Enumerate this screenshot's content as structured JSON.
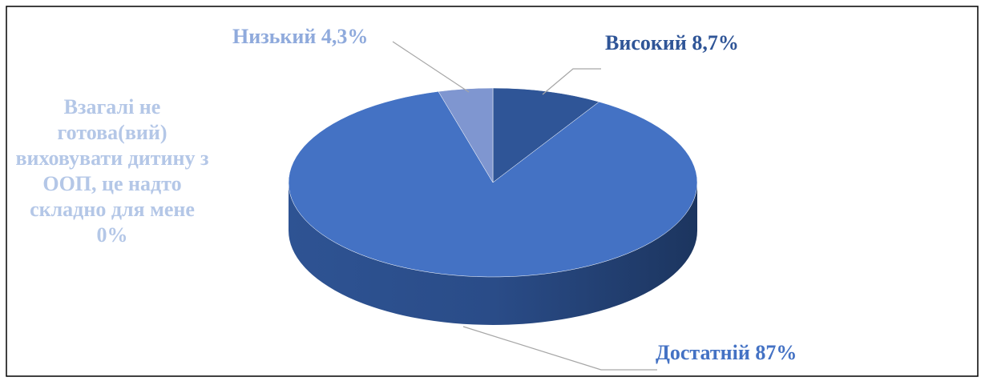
{
  "chart_data": {
    "type": "pie3d",
    "categories": [
      "Високий",
      "Достатній",
      "Низький",
      "Взагалі не готова(вий) виховувати дитину з ООП, це надто складно для мене"
    ],
    "values": [
      8.7,
      87,
      4.3,
      0
    ],
    "value_labels": [
      "8,7%",
      "87%",
      "4,3%",
      "0%"
    ],
    "colors": [
      "#2f5597",
      "#4472c4",
      "#7f96d0",
      "#b4c7e7"
    ],
    "label_colors": [
      "#2f5597",
      "#4472c4",
      "#8faadc",
      "#b4c7e7"
    ]
  }
}
